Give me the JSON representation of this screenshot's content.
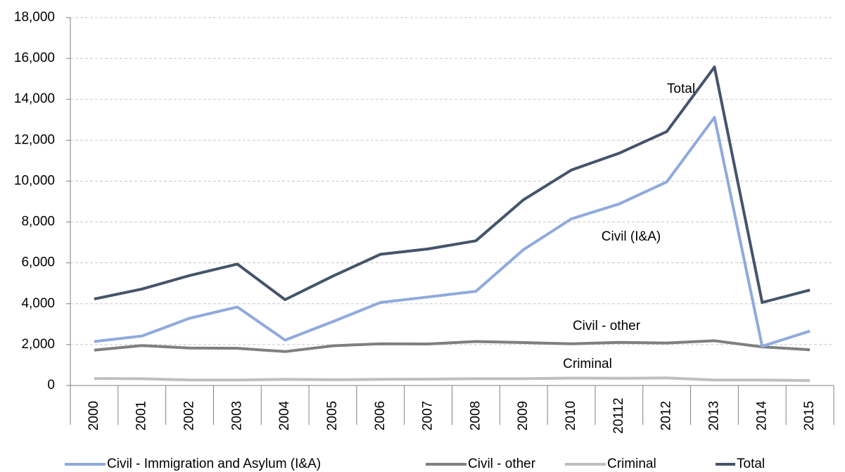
{
  "chart_data": {
    "type": "line",
    "categories": [
      "2000",
      "2001",
      "2002",
      "2003",
      "2004",
      "2005",
      "2006",
      "2007",
      "2008",
      "2009",
      "2010",
      "20112",
      "2012",
      "2013",
      "2014",
      "2015"
    ],
    "series": [
      {
        "name": "Civil - Immigration and Asylum (I&A)",
        "color": "#8faadc",
        "values": [
          2150,
          2420,
          3290,
          3840,
          2220,
          3120,
          4060,
          4330,
          4610,
          6650,
          8150,
          8880,
          9960,
          13120,
          1920,
          2660
        ]
      },
      {
        "name": "Civil - other",
        "color": "#7f7f7f",
        "values": [
          1730,
          1950,
          1830,
          1820,
          1660,
          1940,
          2040,
          2030,
          2150,
          2100,
          2040,
          2110,
          2080,
          2190,
          1890,
          1750
        ]
      },
      {
        "name": "Criminal",
        "color": "#bfbfbf",
        "values": [
          340,
          330,
          270,
          270,
          300,
          280,
          300,
          310,
          330,
          330,
          360,
          350,
          370,
          270,
          270,
          240
        ]
      },
      {
        "name": "Total",
        "color": "#44546a",
        "values": [
          4230,
          4720,
          5380,
          5940,
          4200,
          5350,
          6420,
          6680,
          7080,
          9090,
          10540,
          11360,
          12420,
          15580,
          4060,
          4670
        ]
      }
    ],
    "annotations": [
      "Total",
      "Civil (I&A)",
      "Civil - other",
      "Criminal"
    ],
    "ylim": [
      0,
      18000
    ],
    "yticks": [
      0,
      {
        "value": 2000,
        "label": "2,000"
      },
      {
        "value": 4000,
        "label": "4,000"
      },
      {
        "value": 6000,
        "label": "6,000"
      },
      {
        "value": 8000,
        "label": "8,000"
      },
      {
        "value": 10000,
        "label": "10,000"
      },
      {
        "value": 12000,
        "label": "12,000"
      },
      {
        "value": 14000,
        "label": "14,000"
      },
      {
        "value": 16000,
        "label": "16,000"
      },
      {
        "value": 18000,
        "label": "18,000"
      }
    ],
    "grid": true
  }
}
